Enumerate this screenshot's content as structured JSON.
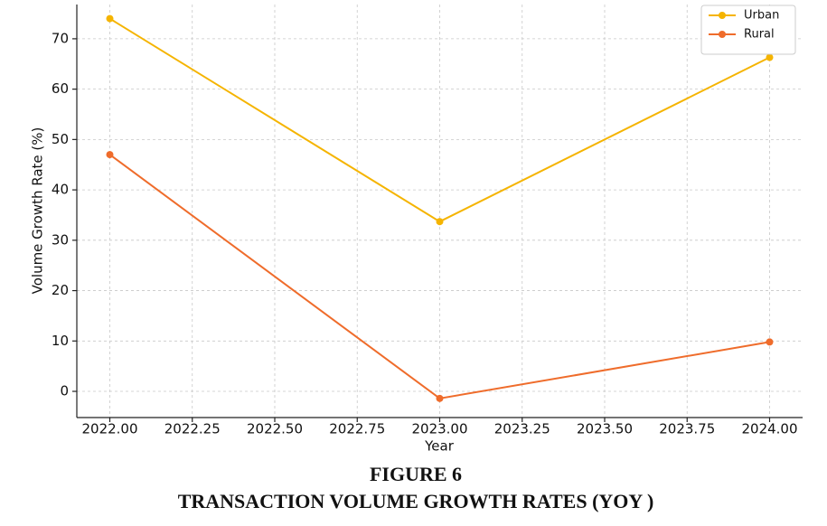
{
  "chart_data": {
    "type": "line",
    "figure_label": "FIGURE 6",
    "title": "TRANSACTION VOLUME GROWTH RATES (YOY )",
    "x_label": "Year",
    "y_label": "Volume Growth Rate (%)",
    "x": [
      2022,
      2023,
      2024
    ],
    "series": [
      {
        "name": "Urban",
        "color": "#f5b400",
        "values": [
          74.0,
          33.7,
          66.3
        ]
      },
      {
        "name": "Rural",
        "color": "#ef6c2b",
        "values": [
          47.0,
          -1.4,
          9.8
        ]
      }
    ],
    "xlim": [
      2021.9,
      2024.1
    ],
    "ylim": [
      -5.2,
      76.8
    ],
    "xticks": [
      {
        "value": 2022,
        "label": "2022.00"
      },
      {
        "value": 2022.25,
        "label": "2022.25"
      },
      {
        "value": 2022.5,
        "label": "2022.50"
      },
      {
        "value": 2022.75,
        "label": "2022.75"
      },
      {
        "value": 2023,
        "label": "2023.00"
      },
      {
        "value": 2023.25,
        "label": "2023.25"
      },
      {
        "value": 2023.5,
        "label": "2023.50"
      },
      {
        "value": 2023.75,
        "label": "2023.75"
      },
      {
        "value": 2024,
        "label": "2024.00"
      }
    ],
    "yticks": [
      0,
      10,
      20,
      30,
      40,
      50,
      60,
      70
    ],
    "grid": true,
    "legend": "upper right"
  }
}
